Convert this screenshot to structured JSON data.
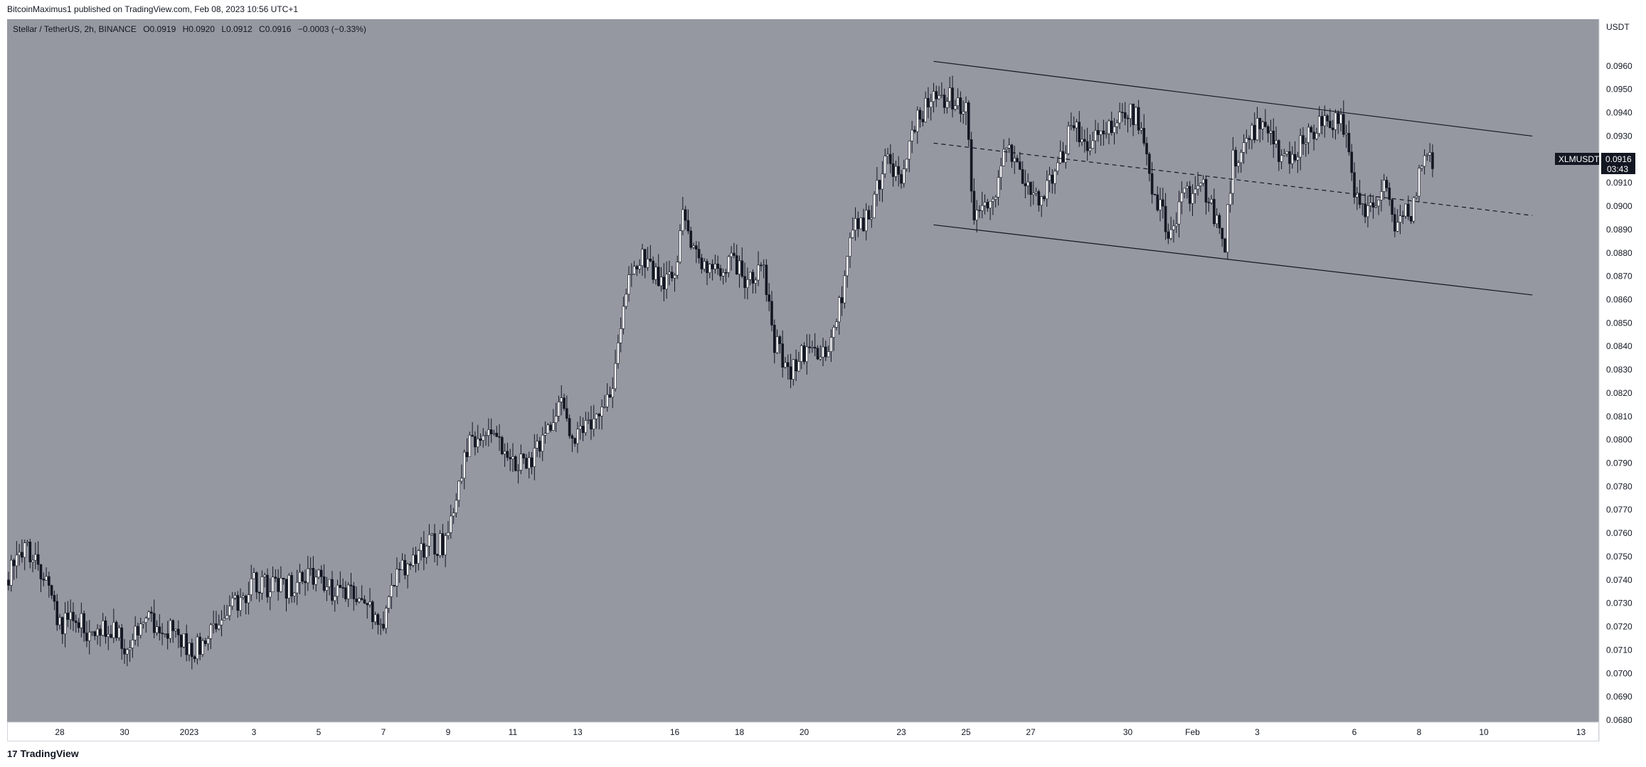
{
  "header": {
    "published": "BitcoinMaximus1 published on TradingView.com, Feb 08, 2023 10:56 UTC+1"
  },
  "legend": {
    "symbol": "Stellar / TetherUS, 2h, BINANCE",
    "o_label": "O",
    "o": "0.0919",
    "h_label": "H",
    "h": "0.0920",
    "l_label": "L",
    "l": "0.0912",
    "c_label": "C",
    "c": "0.0916",
    "change": "−0.0003 (−0.33%)"
  },
  "axis": {
    "currency": "USDT"
  },
  "ticker_tag": {
    "symbol": "XLMUSDT",
    "price": "0.0916",
    "countdown": "03:43"
  },
  "footer": {
    "brand": "TradingView",
    "logo_text": "17"
  },
  "colors": {
    "plot_bg": "#9598a1",
    "candle_fill": "#ffffff",
    "candle_line": "#131722",
    "tag_bg": "#131722",
    "tag_text": "#ffffff"
  },
  "chart_data": {
    "type": "candlestick",
    "interval": "2h",
    "y_label": "USDT",
    "ylim": [
      0.068,
      0.097
    ],
    "y_ticks": [
      "0.0680",
      "0.0690",
      "0.0700",
      "0.0710",
      "0.0720",
      "0.0730",
      "0.0740",
      "0.0750",
      "0.0760",
      "0.0770",
      "0.0780",
      "0.0790",
      "0.0800",
      "0.0810",
      "0.0820",
      "0.0830",
      "0.0840",
      "0.0850",
      "0.0860",
      "0.0870",
      "0.0880",
      "0.0890",
      "0.0900",
      "0.0910",
      "0.0920",
      "0.0930",
      "0.0940",
      "0.0950",
      "0.0960"
    ],
    "x_ticks": [
      {
        "label": "28",
        "date": "2022-12-28"
      },
      {
        "label": "30",
        "date": "2022-12-30"
      },
      {
        "label": "2023",
        "date": "2023-01-01"
      },
      {
        "label": "3",
        "date": "2023-01-03"
      },
      {
        "label": "5",
        "date": "2023-01-05"
      },
      {
        "label": "7",
        "date": "2023-01-07"
      },
      {
        "label": "9",
        "date": "2023-01-09"
      },
      {
        "label": "11",
        "date": "2023-01-11"
      },
      {
        "label": "13",
        "date": "2023-01-13"
      },
      {
        "label": "16",
        "date": "2023-01-16"
      },
      {
        "label": "18",
        "date": "2023-01-18"
      },
      {
        "label": "20",
        "date": "2023-01-20"
      },
      {
        "label": "23",
        "date": "2023-01-23"
      },
      {
        "label": "25",
        "date": "2023-01-25"
      },
      {
        "label": "27",
        "date": "2023-01-27"
      },
      {
        "label": "30",
        "date": "2023-01-30"
      },
      {
        "label": "Feb",
        "date": "2023-02-01"
      },
      {
        "label": "3",
        "date": "2023-02-03"
      },
      {
        "label": "6",
        "date": "2023-02-06"
      },
      {
        "label": "8",
        "date": "2023-02-08"
      },
      {
        "label": "10",
        "date": "2023-02-10"
      },
      {
        "label": "13",
        "date": "2023-02-13"
      }
    ],
    "price_path": [
      [
        "2022-12-26 10:00",
        0.074
      ],
      [
        "2022-12-26 16:00",
        0.0753
      ],
      [
        "2022-12-27 00:00",
        0.0752
      ],
      [
        "2022-12-27 08:00",
        0.0744
      ],
      [
        "2022-12-27 16:00",
        0.0738
      ],
      [
        "2022-12-28 00:00",
        0.072
      ],
      [
        "2022-12-28 12:00",
        0.0723
      ],
      [
        "2022-12-29 00:00",
        0.0716
      ],
      [
        "2022-12-29 12:00",
        0.0721
      ],
      [
        "2022-12-30 00:00",
        0.0712
      ],
      [
        "2022-12-30 12:00",
        0.0721
      ],
      [
        "2022-12-31 00:00",
        0.0722
      ],
      [
        "2022-12-31 12:00",
        0.0717
      ],
      [
        "2023-01-01 00:00",
        0.071
      ],
      [
        "2023-01-01 12:00",
        0.0713
      ],
      [
        "2023-01-02 00:00",
        0.0722
      ],
      [
        "2023-01-02 12:00",
        0.0731
      ],
      [
        "2023-01-03 00:00",
        0.0739
      ],
      [
        "2023-01-03 12:00",
        0.0737
      ],
      [
        "2023-01-04 00:00",
        0.0736
      ],
      [
        "2023-01-04 12:00",
        0.0742
      ],
      [
        "2023-01-05 00:00",
        0.074
      ],
      [
        "2023-01-05 12:00",
        0.0733
      ],
      [
        "2023-01-06 00:00",
        0.0737
      ],
      [
        "2023-01-06 12:00",
        0.0728
      ],
      [
        "2023-01-07 00:00",
        0.0724
      ],
      [
        "2023-01-07 12:00",
        0.0744
      ],
      [
        "2023-01-08 00:00",
        0.0752
      ],
      [
        "2023-01-08 12:00",
        0.0755
      ],
      [
        "2023-01-09 00:00",
        0.0756
      ],
      [
        "2023-01-09 12:00",
        0.0795
      ],
      [
        "2023-01-10 00:00",
        0.0803
      ],
      [
        "2023-01-10 12:00",
        0.0797
      ],
      [
        "2023-01-11 00:00",
        0.0792
      ],
      [
        "2023-01-11 12:00",
        0.079
      ],
      [
        "2023-01-12 00:00",
        0.0805
      ],
      [
        "2023-01-12 12:00",
        0.0813
      ],
      [
        "2023-01-13 00:00",
        0.08
      ],
      [
        "2023-01-13 12:00",
        0.081
      ],
      [
        "2023-01-14 00:00",
        0.0818
      ],
      [
        "2023-01-14 12:00",
        0.0865
      ],
      [
        "2023-01-15 00:00",
        0.088
      ],
      [
        "2023-01-15 12:00",
        0.0868
      ],
      [
        "2023-01-16 00:00",
        0.087
      ],
      [
        "2023-01-16 06:00",
        0.0898
      ],
      [
        "2023-01-16 18:00",
        0.0876
      ],
      [
        "2023-01-17 06:00",
        0.0872
      ],
      [
        "2023-01-17 18:00",
        0.0876
      ],
      [
        "2023-01-18 06:00",
        0.0868
      ],
      [
        "2023-01-18 18:00",
        0.0876
      ],
      [
        "2023-01-19 00:00",
        0.0845
      ],
      [
        "2023-01-19 12:00",
        0.0828
      ],
      [
        "2023-01-20 00:00",
        0.0837
      ],
      [
        "2023-01-20 12:00",
        0.0835
      ],
      [
        "2023-01-21 00:00",
        0.085
      ],
      [
        "2023-01-21 12:00",
        0.089
      ],
      [
        "2023-01-22 00:00",
        0.0896
      ],
      [
        "2023-01-22 12:00",
        0.092
      ],
      [
        "2023-01-23 00:00",
        0.0912
      ],
      [
        "2023-01-23 12:00",
        0.0938
      ],
      [
        "2023-01-24 00:00",
        0.0945
      ],
      [
        "2023-01-24 12:00",
        0.0946
      ],
      [
        "2023-01-25 00:00",
        0.094
      ],
      [
        "2023-01-25 06:00",
        0.0897
      ],
      [
        "2023-01-25 18:00",
        0.09
      ],
      [
        "2023-01-26 06:00",
        0.0925
      ],
      [
        "2023-01-26 18:00",
        0.0913
      ],
      [
        "2023-01-27 06:00",
        0.0905
      ],
      [
        "2023-01-27 18:00",
        0.0912
      ],
      [
        "2023-01-28 06:00",
        0.0935
      ],
      [
        "2023-01-28 18:00",
        0.0928
      ],
      [
        "2023-01-29 06:00",
        0.093
      ],
      [
        "2023-01-29 18:00",
        0.0938
      ],
      [
        "2023-01-30 06:00",
        0.094
      ],
      [
        "2023-01-30 18:00",
        0.091
      ],
      [
        "2023-01-31 06:00",
        0.089
      ],
      [
        "2023-01-31 18:00",
        0.0903
      ],
      [
        "2023-02-01 06:00",
        0.091
      ],
      [
        "2023-02-01 18:00",
        0.0893
      ],
      [
        "2023-02-02 00:00",
        0.0885
      ],
      [
        "2023-02-02 06:00",
        0.092
      ],
      [
        "2023-02-02 18:00",
        0.0928
      ],
      [
        "2023-02-03 06:00",
        0.0938
      ],
      [
        "2023-02-03 18:00",
        0.0918
      ],
      [
        "2023-02-04 06:00",
        0.0925
      ],
      [
        "2023-02-04 18:00",
        0.0932
      ],
      [
        "2023-02-05 06:00",
        0.0938
      ],
      [
        "2023-02-05 18:00",
        0.0935
      ],
      [
        "2023-02-06 00:00",
        0.0905
      ],
      [
        "2023-02-06 12:00",
        0.0898
      ],
      [
        "2023-02-07 00:00",
        0.0908
      ],
      [
        "2023-02-07 06:00",
        0.0894
      ],
      [
        "2023-02-07 18:00",
        0.0898
      ],
      [
        "2023-02-08 00:00",
        0.0912
      ],
      [
        "2023-02-08 06:00",
        0.0924
      ],
      [
        "2023-02-08 10:00",
        0.0916
      ]
    ],
    "channel": {
      "upper": [
        [
          "2023-01-24 00:00",
          0.0962
        ],
        [
          "2023-02-11 12:00",
          0.093
        ]
      ],
      "middle": [
        [
          "2023-01-24 00:00",
          0.0927
        ],
        [
          "2023-02-11 12:00",
          0.0896
        ]
      ],
      "lower": [
        [
          "2023-01-24 00:00",
          0.0892
        ],
        [
          "2023-02-11 12:00",
          0.0862
        ]
      ]
    },
    "last_price": 0.0916
  }
}
